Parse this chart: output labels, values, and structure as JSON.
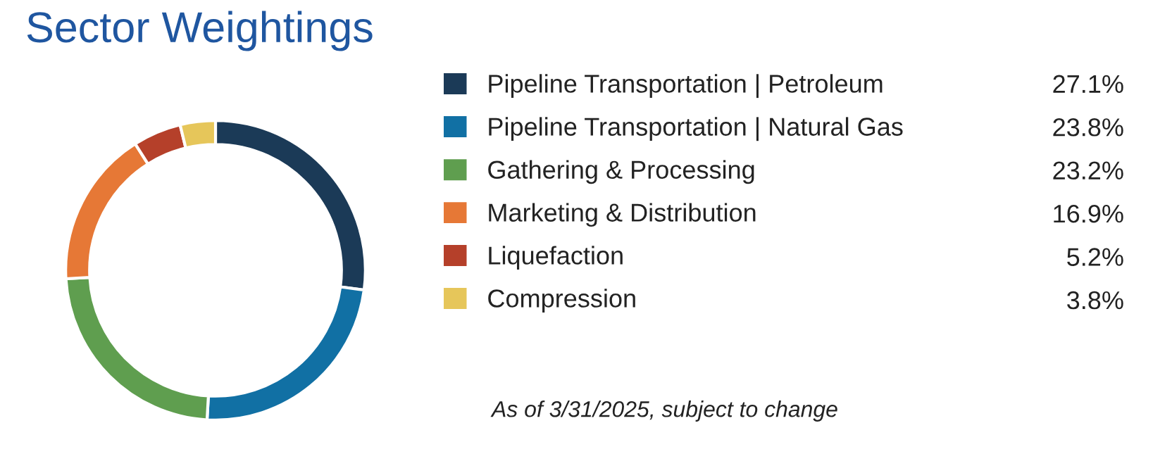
{
  "chart_data": {
    "type": "donut",
    "title": "Sector Weightings",
    "categories": [
      "Pipeline Transportation | Petroleum",
      "Pipeline Transportation | Natural Gas",
      "Gathering & Processing",
      "Marketing & Distribution",
      "Liquefaction",
      "Compression"
    ],
    "values": [
      27.1,
      23.8,
      23.2,
      16.9,
      5.2,
      3.8
    ],
    "colors": [
      "#1b3a57",
      "#1170a4",
      "#5f9e4f",
      "#e67836",
      "#b5402a",
      "#e6c65a"
    ],
    "value_labels": [
      "27.1%",
      "23.8%",
      "23.2%",
      "16.9%",
      "5.2%",
      "3.8%"
    ],
    "legend": "right",
    "annotations": [
      "As of 3/31/2025, subject to change"
    ]
  }
}
